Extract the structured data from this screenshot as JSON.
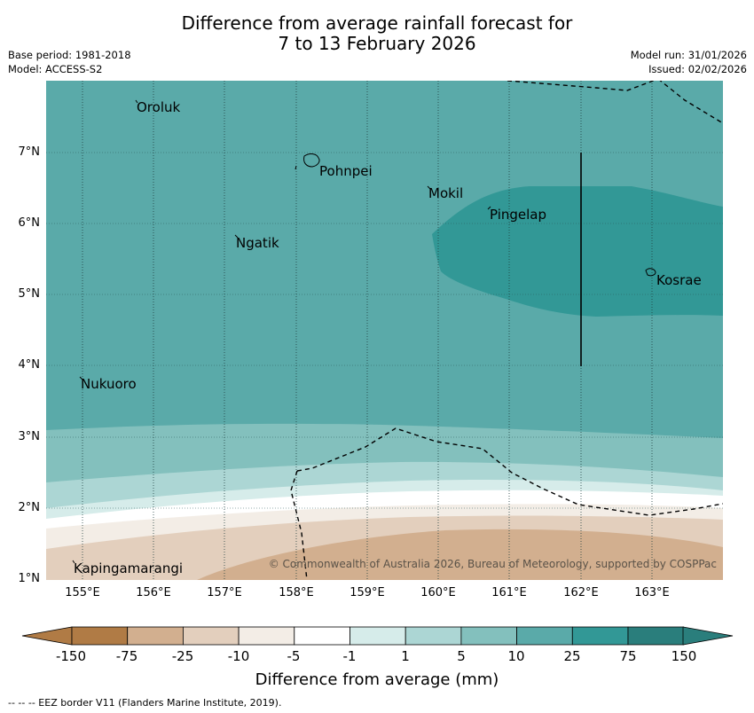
{
  "header": {
    "title_line1": "Difference from average rainfall forecast for",
    "title_line2": "7 to 13 February 2026",
    "base_period": "Base period: 1981-2018",
    "model": "Model: ACCESS-S2",
    "model_run": "Model run: 31/01/2026",
    "issued": "Issued: 02/02/2026"
  },
  "map": {
    "x_ticks": [
      "155°E",
      "156°E",
      "157°E",
      "158°E",
      "159°E",
      "160°E",
      "161°E",
      "162°E",
      "163°E"
    ],
    "y_ticks": [
      "7°N",
      "6°N",
      "5°N",
      "4°N",
      "3°N",
      "2°N",
      "1°N"
    ],
    "places": [
      "Oroluk",
      "Pohnpei",
      "Mokil",
      "Pingelap",
      "Ngatik",
      "Kosrae",
      "Nukuoro",
      "Kapingamarangi"
    ],
    "copyright": "© Commonwealth of Australia 2026, Bureau of Meteorology, supported by COSPPac"
  },
  "colorbar": {
    "labels": [
      "-150",
      "-75",
      "-25",
      "-10",
      "-5",
      "-1",
      "1",
      "5",
      "10",
      "25",
      "75",
      "150"
    ],
    "colors": [
      "#b07b45",
      "#bf9468",
      "#d2af8f",
      "#e3cfbd",
      "#f3ede6",
      "#ffffff",
      "#d6ecea",
      "#acd6d4",
      "#83c0bd",
      "#5aaaa9",
      "#329896",
      "#2a7e7c"
    ],
    "title": "Difference from average (mm)"
  },
  "footer": {
    "note": "--  --  -- EEZ border V11 (Flanders Marine Institute, 2019)."
  }
}
